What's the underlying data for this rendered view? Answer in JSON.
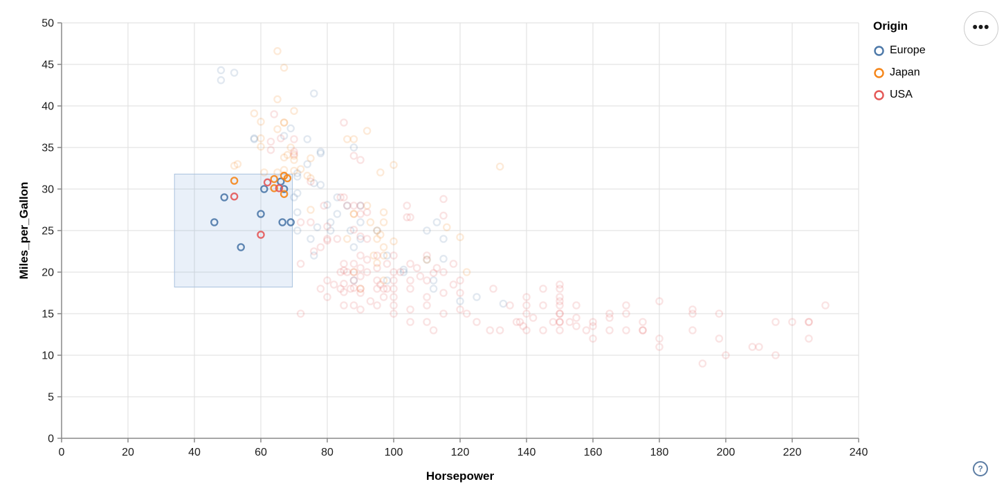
{
  "legend": {
    "title": "Origin",
    "items": [
      {
        "label": "Europe",
        "color": "#4c78a8"
      },
      {
        "label": "Japan",
        "color": "#f58518"
      },
      {
        "label": "USA",
        "color": "#e45756"
      }
    ]
  },
  "controls": {
    "menu_icon": "•••",
    "help_icon": "?"
  },
  "colors": {
    "grid": "#dddddd",
    "axis": "#888888",
    "tick_label": "#1b1b1b",
    "brush_fill": "rgba(120,160,215,0.16)",
    "brush_stroke": "#a8c1de",
    "background": "#ffffff"
  },
  "chart_data": {
    "type": "scatter",
    "title": "",
    "xlabel": "Horsepower",
    "ylabel": "Miles_per_Gallon",
    "xlim": [
      0,
      240
    ],
    "ylim": [
      0,
      50
    ],
    "xticks": [
      0,
      20,
      40,
      60,
      80,
      100,
      120,
      140,
      160,
      180,
      200,
      220,
      240
    ],
    "yticks": [
      0,
      5,
      10,
      15,
      20,
      25,
      30,
      35,
      40,
      45,
      50
    ],
    "grid": true,
    "legend_position": "right-top-outside",
    "point_shape": "open-circle",
    "selected_opacity": 0.9,
    "unselected_opacity": 0.17,
    "brush_selection": {
      "horsepower": [
        34,
        69.5
      ],
      "miles_per_gallon": [
        18.2,
        31.8
      ]
    },
    "series": [
      {
        "name": "Europe",
        "color": "#4c78a8",
        "points": [
          [
            46,
            26
          ],
          [
            49,
            29
          ],
          [
            54,
            23
          ],
          [
            60,
            27
          ],
          [
            61,
            30
          ],
          [
            66,
            30.9
          ],
          [
            66.5,
            26
          ],
          [
            69,
            26
          ],
          [
            67,
            30
          ],
          [
            48,
            43.1
          ],
          [
            48,
            44.3
          ],
          [
            52,
            44
          ],
          [
            76,
            41.5
          ],
          [
            58,
            36.1
          ],
          [
            58,
            36
          ],
          [
            88,
            35
          ],
          [
            69,
            37.3
          ],
          [
            67,
            36.4
          ],
          [
            74,
            36
          ],
          [
            78,
            34.3
          ],
          [
            78,
            34.5
          ],
          [
            74,
            33
          ],
          [
            71,
            31.9
          ],
          [
            71,
            31.5
          ],
          [
            87,
            25
          ],
          [
            90,
            24
          ],
          [
            95,
            25
          ],
          [
            113,
            26
          ],
          [
            90,
            28
          ],
          [
            76,
            22
          ],
          [
            90,
            26
          ],
          [
            75,
            24
          ],
          [
            103,
            20
          ],
          [
            98,
            19
          ],
          [
            115,
            24
          ],
          [
            88,
            23
          ],
          [
            112,
            18
          ],
          [
            112,
            19
          ],
          [
            81,
            26
          ],
          [
            70,
            29
          ],
          [
            83,
            29
          ],
          [
            71,
            25
          ],
          [
            88,
            19
          ],
          [
            83,
            27
          ],
          [
            98,
            22
          ],
          [
            110,
            25
          ],
          [
            86,
            28
          ],
          [
            81,
            25
          ],
          [
            71,
            29.5
          ],
          [
            71,
            27.2
          ],
          [
            125,
            17
          ],
          [
            115,
            21.6
          ],
          [
            133,
            16.2
          ],
          [
            120,
            16.5
          ],
          [
            103,
            20.3
          ],
          [
            80,
            28.1
          ],
          [
            76,
            30.7
          ],
          [
            78,
            30.5
          ],
          [
            110,
            21.5
          ],
          [
            77,
            25.4
          ]
        ]
      },
      {
        "name": "Japan",
        "color": "#f58518",
        "points": [
          [
            52,
            31
          ],
          [
            64,
            31.2
          ],
          [
            67,
            31.6
          ],
          [
            68,
            31.3
          ],
          [
            64,
            30.1
          ],
          [
            67,
            29.4
          ],
          [
            65,
            46.6
          ],
          [
            67,
            44.6
          ],
          [
            65,
            40.8
          ],
          [
            70,
            39.4
          ],
          [
            58,
            39.1
          ],
          [
            60,
            38.1
          ],
          [
            67,
            38
          ],
          [
            67,
            38
          ],
          [
            65,
            37.2
          ],
          [
            60,
            36.1
          ],
          [
            92,
            37
          ],
          [
            88,
            36
          ],
          [
            86,
            36
          ],
          [
            60,
            35.1
          ],
          [
            68,
            34.1
          ],
          [
            70,
            34
          ],
          [
            67,
            33.8
          ],
          [
            70,
            33.5
          ],
          [
            53,
            33
          ],
          [
            52,
            32.8
          ],
          [
            67,
            32.3
          ],
          [
            100,
            32.9
          ],
          [
            132,
            32.7
          ],
          [
            96,
            32
          ],
          [
            61,
            32
          ],
          [
            65,
            32
          ],
          [
            72,
            32.4
          ],
          [
            70,
            32.2
          ],
          [
            74,
            31.6
          ],
          [
            75,
            33.7
          ],
          [
            75,
            31.3
          ],
          [
            69,
            35
          ],
          [
            88,
            27
          ],
          [
            88,
            27
          ],
          [
            92,
            28
          ],
          [
            95,
            24
          ],
          [
            95,
            25
          ],
          [
            86,
            24
          ],
          [
            97,
            19
          ],
          [
            88,
            20
          ],
          [
            94,
            22
          ],
          [
            90,
            18
          ],
          [
            122,
            20
          ],
          [
            93,
            26
          ],
          [
            97,
            26
          ],
          [
            95,
            21.1
          ],
          [
            97,
            22
          ],
          [
            97,
            27.2
          ],
          [
            75,
            27.5
          ],
          [
            110,
            21.5
          ],
          [
            116,
            25.4
          ],
          [
            120,
            24.2
          ],
          [
            100,
            23.7
          ],
          [
            97,
            23
          ],
          [
            96,
            24.5
          ]
        ]
      },
      {
        "name": "USA",
        "color": "#e45756",
        "points": [
          [
            52,
            29.1
          ],
          [
            60,
            24.5
          ],
          [
            62,
            30.8
          ],
          [
            65.5,
            30.1
          ],
          [
            64,
            39
          ],
          [
            63,
            34.7
          ],
          [
            63,
            35.7
          ],
          [
            70,
            34.2
          ],
          [
            70,
            34.5
          ],
          [
            75,
            30.9
          ],
          [
            70,
            36
          ],
          [
            66,
            36.1
          ],
          [
            85,
            38
          ],
          [
            88,
            34
          ],
          [
            90,
            33.5
          ],
          [
            72,
            26
          ],
          [
            75,
            26
          ],
          [
            79,
            28
          ],
          [
            80,
            25.5
          ],
          [
            83,
            24
          ],
          [
            72,
            21
          ],
          [
            76,
            22.5
          ],
          [
            78,
            23
          ],
          [
            80,
            24
          ],
          [
            80,
            23.8
          ],
          [
            88,
            25.1
          ],
          [
            90,
            27
          ],
          [
            90,
            28
          ],
          [
            92,
            27.2
          ],
          [
            84,
            29
          ],
          [
            92,
            24
          ],
          [
            90,
            24.3
          ],
          [
            105,
            26.6
          ],
          [
            115,
            28.8
          ],
          [
            115,
            26.8
          ],
          [
            85,
            29
          ],
          [
            86,
            28
          ],
          [
            88,
            28
          ],
          [
            104,
            28
          ],
          [
            104,
            26.6
          ],
          [
            84,
            20
          ],
          [
            84,
            18
          ],
          [
            85,
            21
          ],
          [
            85,
            20.2
          ],
          [
            85,
            18.6
          ],
          [
            85,
            17.6
          ],
          [
            85,
            16
          ],
          [
            86,
            20
          ],
          [
            87,
            18
          ],
          [
            88,
            21
          ],
          [
            88,
            20
          ],
          [
            88,
            19
          ],
          [
            88,
            18.1
          ],
          [
            88,
            16
          ],
          [
            90,
            22
          ],
          [
            90,
            20.5
          ],
          [
            90,
            19.5
          ],
          [
            90,
            18
          ],
          [
            90,
            17.5
          ],
          [
            90,
            15.5
          ],
          [
            92,
            20
          ],
          [
            92,
            21.5
          ],
          [
            93,
            16.5
          ],
          [
            95,
            22
          ],
          [
            95,
            20.5
          ],
          [
            95,
            19
          ],
          [
            95,
            18
          ],
          [
            95,
            16
          ],
          [
            96,
            18.5
          ],
          [
            97,
            18
          ],
          [
            97,
            17
          ],
          [
            98,
            21
          ],
          [
            98,
            18
          ],
          [
            100,
            22
          ],
          [
            100,
            20
          ],
          [
            100,
            19
          ],
          [
            100,
            18
          ],
          [
            100,
            17
          ],
          [
            100,
            16
          ],
          [
            102,
            20
          ],
          [
            105,
            21
          ],
          [
            105,
            19
          ],
          [
            105,
            18
          ],
          [
            105,
            15.5
          ],
          [
            107,
            20.5
          ],
          [
            108,
            19.5
          ],
          [
            110,
            22
          ],
          [
            110,
            19
          ],
          [
            110,
            17
          ],
          [
            110,
            16
          ],
          [
            112,
            19.9
          ],
          [
            115,
            20
          ],
          [
            115,
            17.5
          ],
          [
            118,
            18.5
          ],
          [
            118,
            21
          ],
          [
            113,
            20.5
          ],
          [
            120,
            19
          ],
          [
            120,
            17.5
          ],
          [
            72,
            15
          ],
          [
            100,
            15
          ],
          [
            105,
            14
          ],
          [
            110,
            14
          ],
          [
            112,
            13
          ],
          [
            115,
            15
          ],
          [
            120,
            15.5
          ],
          [
            122,
            15
          ],
          [
            125,
            14
          ],
          [
            129,
            13
          ],
          [
            132,
            13
          ],
          [
            135,
            16
          ],
          [
            137,
            14
          ],
          [
            138,
            14
          ],
          [
            139,
            13.5
          ],
          [
            78,
            18
          ],
          [
            80,
            19
          ],
          [
            80,
            17
          ],
          [
            82,
            18.5
          ],
          [
            130,
            18
          ],
          [
            140,
            13
          ],
          [
            140,
            15
          ],
          [
            140,
            16
          ],
          [
            140,
            17
          ],
          [
            142,
            14.5
          ],
          [
            145,
            13
          ],
          [
            145,
            16
          ],
          [
            145,
            18
          ],
          [
            148,
            14
          ],
          [
            150,
            13
          ],
          [
            150,
            14
          ],
          [
            150,
            14
          ],
          [
            150,
            15
          ],
          [
            150,
            15
          ],
          [
            150,
            16
          ],
          [
            150,
            16.5
          ],
          [
            150,
            17
          ],
          [
            150,
            18
          ],
          [
            150,
            18.5
          ],
          [
            153,
            14
          ],
          [
            155,
            13.5
          ],
          [
            155,
            14.5
          ],
          [
            155,
            16
          ],
          [
            158,
            13
          ],
          [
            160,
            12
          ],
          [
            160,
            13.5
          ],
          [
            160,
            14
          ],
          [
            165,
            13
          ],
          [
            165,
            14.5
          ],
          [
            165,
            15
          ],
          [
            170,
            13
          ],
          [
            170,
            15
          ],
          [
            170,
            16
          ],
          [
            175,
            13
          ],
          [
            175,
            13
          ],
          [
            175,
            14
          ],
          [
            180,
            16.5
          ],
          [
            180,
            12
          ],
          [
            180,
            11
          ],
          [
            190,
            15
          ],
          [
            190,
            15.5
          ],
          [
            190,
            13
          ],
          [
            193,
            9
          ],
          [
            198,
            15
          ],
          [
            198,
            12
          ],
          [
            200,
            10
          ],
          [
            208,
            11
          ],
          [
            210,
            11
          ],
          [
            215,
            14
          ],
          [
            215,
            10
          ],
          [
            220,
            14
          ],
          [
            225,
            14
          ],
          [
            225,
            14
          ],
          [
            225,
            12
          ],
          [
            230,
            16
          ]
        ]
      }
    ]
  }
}
